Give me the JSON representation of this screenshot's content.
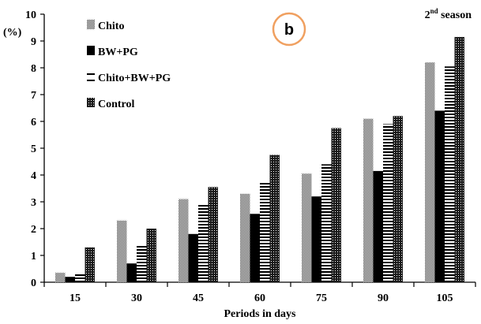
{
  "chart_data": {
    "type": "bar",
    "ylabel": "(%)",
    "xlabel": "Periods in days",
    "panel_label": "b",
    "season_label": "2",
    "season_sup": "nd",
    "season_rest": " season",
    "ylim": [
      0,
      10
    ],
    "yticks": [
      0,
      1,
      2,
      3,
      4,
      5,
      6,
      7,
      8,
      9,
      10
    ],
    "categories": [
      "15",
      "30",
      "45",
      "60",
      "75",
      "90",
      "105"
    ],
    "series": [
      {
        "name": "Chito",
        "pattern": "checker",
        "values": [
          0.35,
          2.3,
          3.1,
          3.3,
          4.05,
          6.1,
          8.2
        ]
      },
      {
        "name": "BW+PG",
        "pattern": "solid",
        "values": [
          0.2,
          0.7,
          1.8,
          2.55,
          3.2,
          4.15,
          6.4
        ]
      },
      {
        "name": "Chito+BW+PG",
        "pattern": "hstripes",
        "values": [
          0.35,
          1.4,
          2.9,
          3.7,
          4.4,
          5.9,
          8.05
        ]
      },
      {
        "name": "Control",
        "pattern": "dense",
        "values": [
          1.3,
          2.0,
          3.55,
          4.75,
          5.75,
          6.2,
          9.15
        ]
      }
    ],
    "grid": false,
    "legend_position": "top-left",
    "colors": {
      "bar_fill": "#000000",
      "badge_ring": "#f0a060",
      "axis": "#000000"
    }
  }
}
